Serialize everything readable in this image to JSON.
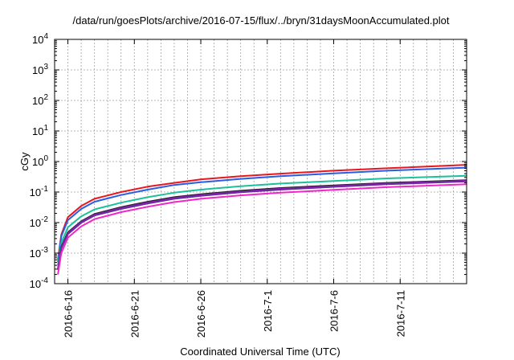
{
  "chart_data": {
    "type": "line",
    "title": "/data/run/goesPlots/archive/2016-07-15/flux/../bryn/31daysMoonAccumulated.plot",
    "xlabel": "Coordinated Universal Time (UTC)",
    "ylabel": "cGy",
    "y_scale": "log",
    "ylim": [
      0.0001,
      10000
    ],
    "xlim": [
      "2016-06-15",
      "2016-07-16"
    ],
    "grid": true,
    "legend": "none",
    "x_ticks": [
      {
        "date": "2016-06-16",
        "label": "2016-6-16"
      },
      {
        "date": "2016-06-21",
        "label": "2016-6-21"
      },
      {
        "date": "2016-06-26",
        "label": "2016-6-26"
      },
      {
        "date": "2016-07-01",
        "label": "2016-7-1"
      },
      {
        "date": "2016-07-06",
        "label": "2016-7-6"
      },
      {
        "date": "2016-07-11",
        "label": "2016-7-11"
      }
    ],
    "y_ticks": [
      {
        "value": 0.0001,
        "base": "10",
        "exp": "-4"
      },
      {
        "value": 0.001,
        "base": "10",
        "exp": "-3"
      },
      {
        "value": 0.01,
        "base": "10",
        "exp": "-2"
      },
      {
        "value": 0.1,
        "base": "10",
        "exp": "-1"
      },
      {
        "value": 1,
        "base": "10",
        "exp": "0"
      },
      {
        "value": 10,
        "base": "10",
        "exp": "1"
      },
      {
        "value": 100,
        "base": "10",
        "exp": "2"
      },
      {
        "value": 1000,
        "base": "10",
        "exp": "3"
      },
      {
        "value": 10000,
        "base": "10",
        "exp": "4"
      }
    ],
    "x": [
      "2016-06-15T06:00",
      "2016-06-15T12:00",
      "2016-06-16",
      "2016-06-17",
      "2016-06-18",
      "2016-06-20",
      "2016-06-22",
      "2016-06-24",
      "2016-06-26",
      "2016-06-29",
      "2016-07-02",
      "2016-07-06",
      "2016-07-10",
      "2016-07-16"
    ],
    "series": [
      {
        "color": "#e8161e",
        "values": [
          0.0006,
          0.004,
          0.015,
          0.035,
          0.06,
          0.1,
          0.15,
          0.2,
          0.26,
          0.33,
          0.4,
          0.5,
          0.6,
          0.78
        ]
      },
      {
        "color": "#2a5de6",
        "values": [
          0.0005,
          0.0035,
          0.012,
          0.028,
          0.048,
          0.08,
          0.12,
          0.17,
          0.21,
          0.27,
          0.33,
          0.41,
          0.5,
          0.63
        ]
      },
      {
        "color": "#1cc09a",
        "values": [
          0.0004,
          0.0022,
          0.007,
          0.016,
          0.027,
          0.045,
          0.068,
          0.095,
          0.12,
          0.155,
          0.19,
          0.23,
          0.28,
          0.34
        ]
      },
      {
        "color": "#222222",
        "values": [
          0.0003,
          0.0016,
          0.0048,
          0.011,
          0.019,
          0.032,
          0.048,
          0.068,
          0.085,
          0.11,
          0.135,
          0.165,
          0.2,
          0.245
        ]
      },
      {
        "color": "#8a1cb0",
        "values": [
          0.0003,
          0.0015,
          0.0045,
          0.0105,
          0.018,
          0.03,
          0.045,
          0.064,
          0.08,
          0.104,
          0.128,
          0.157,
          0.19,
          0.235
        ]
      },
      {
        "color": "#6b2a9e",
        "values": [
          0.00028,
          0.0014,
          0.0042,
          0.0098,
          0.017,
          0.028,
          0.042,
          0.06,
          0.075,
          0.098,
          0.12,
          0.148,
          0.18,
          0.222
        ]
      },
      {
        "color": "#f027c8",
        "values": [
          0.0002,
          0.001,
          0.0032,
          0.0075,
          0.013,
          0.022,
          0.033,
          0.047,
          0.06,
          0.078,
          0.095,
          0.118,
          0.145,
          0.18
        ]
      }
    ]
  }
}
